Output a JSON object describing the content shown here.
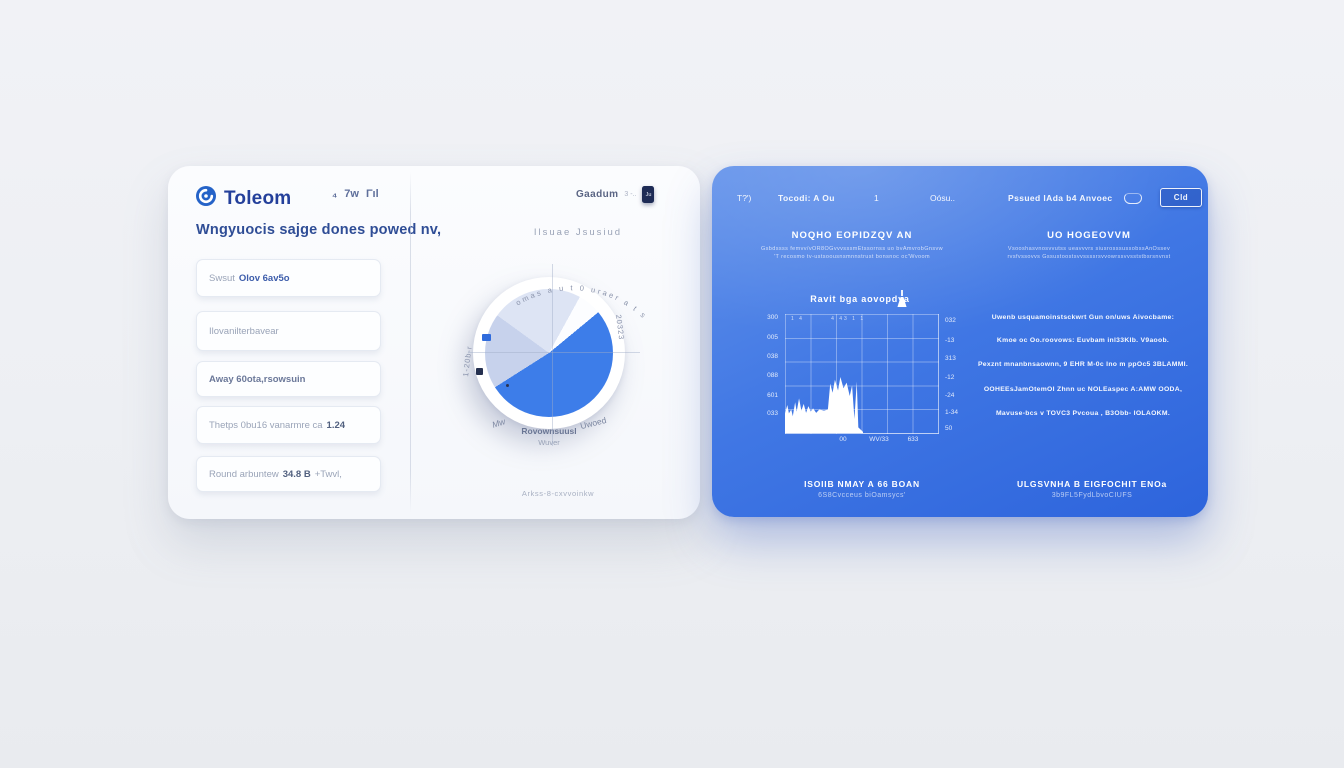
{
  "left_card": {
    "brand": "Toleom",
    "status_icons": {
      "a": "₄",
      "b": "7w",
      "c": "Γıl"
    },
    "heading": "Wngyuocis sajge dones powed nv,",
    "items": [
      {
        "prefix": "Swsut",
        "strong": "Olov 6av5o",
        "suffix": ""
      },
      {
        "prefix": "Ilovanilterbavear",
        "strong": "",
        "suffix": ""
      },
      {
        "prefix": "",
        "strong": "Away 60ota,rsowsuin",
        "suffix": ""
      },
      {
        "prefix": "Thetps 0bu16 vanarmre ca",
        "strong": "1.24",
        "suffix": ""
      },
      {
        "prefix": "Round arbuntew",
        "strong": "34.8 B",
        "suffix": "+Twvl,"
      }
    ]
  },
  "middle_panel": {
    "header_label": "Gaadum",
    "header_sub": "3 -..",
    "badge": "Ju",
    "subtitle": "Ilsuae  Jsusiud",
    "arc_text": "omas a u t 0 uraer a t s",
    "right_rot_label": "20323",
    "left_rot_label": "1-20b-r",
    "label_left": "Mw",
    "label_center": "Rovownsuusl",
    "label_center_sub": "Wuver",
    "label_right": "Uwoed",
    "caption": "Arkss-8-cxvvoinkw"
  },
  "blue_card": {
    "topbar": {
      "small": "T?')",
      "title": "Tocodi: A Ou",
      "page": "1",
      "mid": "Oósu..",
      "right": "Pssued lAda b4 Anvoec",
      "button": "Cld"
    },
    "left_col": {
      "heading": "NOQHO EOPIDZQV AN",
      "line1": "Gsbdssss femvv/vOR8OGvvvsssmEtssornss uo bvAmvrobGnsvw",
      "line2": "'T recosmo tv-ustsoousnsmnnstrust bonsnoc oc'Wvoom"
    },
    "right_col": {
      "heading": "UO HOGEOVVM",
      "line1": "Vsooshasvnosvvutss ueavvvrs siusrosssussobssAnOssev",
      "line2": "rvsfvssovvs Gssustoostsvvssssrsvvowrssvvsststbsrsnvnst"
    },
    "chart_title": "Ravit bga aovopdya",
    "top_ticks": "1 4        4 43 1 1",
    "paragraphs": [
      "Uwenb usquamoinstsckwrt Gun on/uws  Aivocbame:",
      "Kmoe oc Oo.roovows:  Euvbam inl33KIb. V9aoob.",
      "Pexznt mnanbnsaownn, 9 EHR M-0c   Ino m ppOc5 3BLAMMI.",
      "OOHEEsJamOtemOI Zhnn uc   NOLEaspec A:AMW OODA,",
      "Mavuse-bcs v TOVC3 Pvcoua   ,   B3Obb- IOLAOKM."
    ],
    "footer_left": {
      "title": "ISOIIB NMAY A 66 BOAN",
      "sub": "6S8Cvcceus biOamsycs'"
    },
    "footer_right": {
      "title": "ULGSVNHA B EIGFOCHIT ENOa",
      "sub": "3b9FL5FydLbvoCIUFS"
    }
  },
  "chart_data": [
    {
      "type": "pie",
      "title": "Ilsuae Jsusiud",
      "slices": [
        {
          "label": "top-light",
          "value": 8,
          "color": "#dde4f4"
        },
        {
          "label": "notch",
          "value": 6,
          "color": "#fcfdff"
        },
        {
          "label": "primary",
          "value": 52,
          "color": "#3d7de9"
        },
        {
          "label": "mid-lavender",
          "value": 19,
          "color": "#c7d2ec"
        },
        {
          "label": "light-lavender",
          "value": 15,
          "color": "#dde4f4"
        }
      ],
      "labels": [
        "Mw",
        "Rovownsuusl",
        "Uwoed"
      ],
      "legend_position": "bottom"
    },
    {
      "type": "area",
      "title": "Ravit bga aovopdya",
      "y_left": [
        "300",
        "005",
        "038",
        "088",
        "601",
        "033"
      ],
      "y_right": [
        "032",
        "-13",
        "313",
        "-12",
        "-24",
        "1-34",
        "50"
      ],
      "x_labels": [
        "00",
        "WV/33",
        "633"
      ],
      "grid": true,
      "profile": [
        [
          0,
          0.35
        ],
        [
          0.03,
          0.5
        ],
        [
          0.05,
          0.35
        ],
        [
          0.08,
          0.42
        ],
        [
          0.1,
          0.3
        ],
        [
          0.13,
          0.55
        ],
        [
          0.15,
          0.38
        ],
        [
          0.18,
          0.62
        ],
        [
          0.21,
          0.4
        ],
        [
          0.24,
          0.52
        ],
        [
          0.27,
          0.36
        ],
        [
          0.3,
          0.48
        ],
        [
          0.33,
          0.38
        ],
        [
          0.36,
          0.44
        ],
        [
          0.4,
          0.36
        ],
        [
          0.44,
          0.42
        ],
        [
          0.5,
          0.4
        ],
        [
          0.55,
          0.42
        ],
        [
          0.58,
          0.88
        ],
        [
          0.61,
          0.72
        ],
        [
          0.64,
          0.95
        ],
        [
          0.68,
          0.76
        ],
        [
          0.71,
          1.0
        ],
        [
          0.75,
          0.8
        ],
        [
          0.79,
          0.9
        ],
        [
          0.83,
          0.66
        ],
        [
          0.86,
          0.85
        ],
        [
          0.89,
          0.25
        ],
        [
          0.92,
          0.92
        ],
        [
          0.94,
          0.1
        ],
        [
          1,
          0.02
        ]
      ]
    }
  ]
}
